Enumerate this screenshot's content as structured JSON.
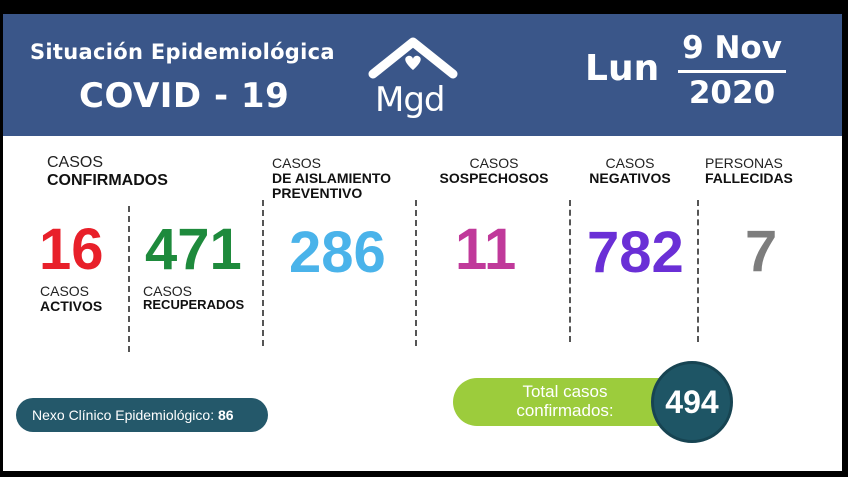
{
  "header": {
    "title_line1": "Situación Epidemiológica",
    "title_line2": "COVID - 19",
    "logo_text": "Mgd",
    "day": "Lun",
    "date_top": "9 Nov",
    "date_bottom": "2020"
  },
  "stats": {
    "confirmados": {
      "label_line1": "CASOS",
      "label_line2": "CONFIRMADOS"
    },
    "activos": {
      "value": "16",
      "label_line1": "CASOS",
      "label_line2": "ACTIVOS",
      "color": "#e8202a"
    },
    "recuperados": {
      "value": "471",
      "label_line1": "CASOS",
      "label_line2": "RECUPERADOS",
      "color": "#1e8a3c"
    },
    "aislamiento": {
      "value": "286",
      "label_line1": "CASOS",
      "label_line2": "DE AISLAMIENTO",
      "label_line3": "PREVENTIVO",
      "color": "#4ab3ea"
    },
    "sospechosos": {
      "value": "11",
      "label_line1": "CASOS",
      "label_line2": "SOSPECHOSOS",
      "color": "#c0399a"
    },
    "negativos": {
      "value": "782",
      "label_line1": "CASOS",
      "label_line2": "NEGATIVOS",
      "color": "#6a2fd6"
    },
    "fallecidas": {
      "value": "7",
      "label_line1": "PERSONAS",
      "label_line2": "FALLECIDAS",
      "color": "#7d7d7d"
    }
  },
  "nexo": {
    "label": "Nexo Clínico Epidemiológico:",
    "value": "86"
  },
  "total": {
    "label_line1": "Total casos",
    "label_line2": "confirmados:",
    "value": "494"
  },
  "colors": {
    "header_bg": "#3a5689",
    "nexo_bg": "#24586a",
    "total_pill": "#9ccc3c",
    "total_circle": "#1e5565"
  }
}
